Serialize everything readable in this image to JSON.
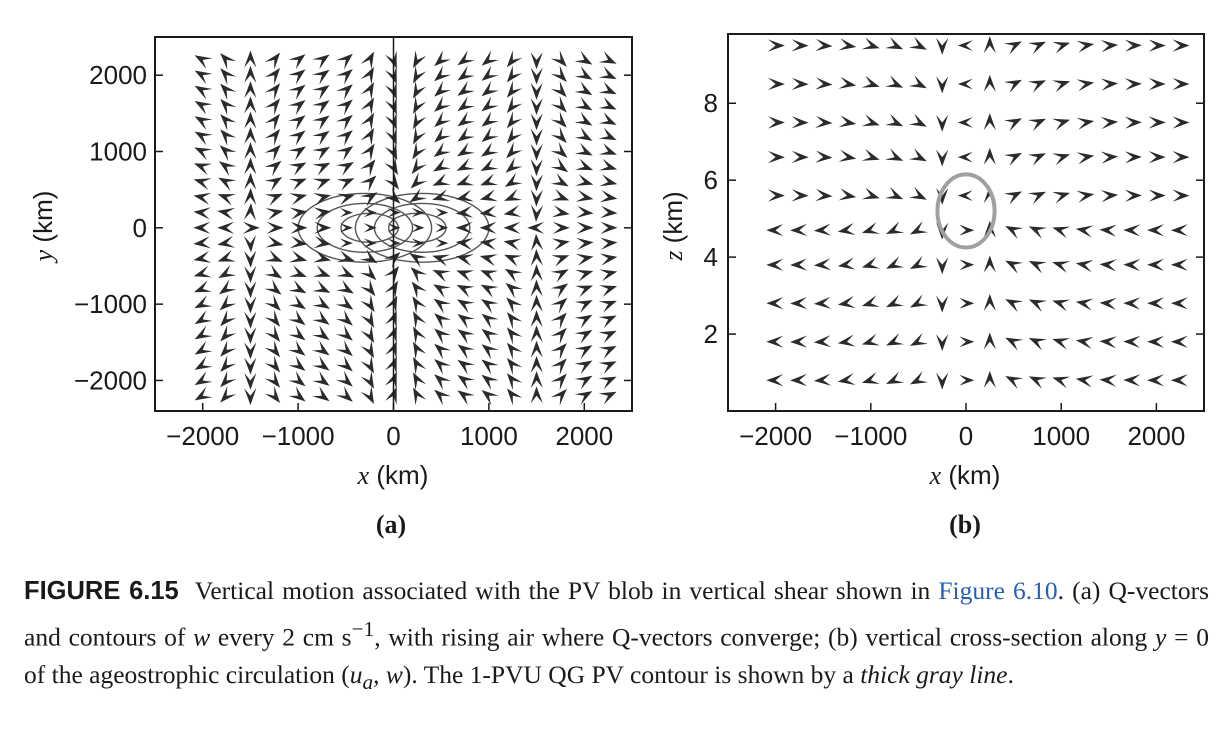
{
  "figure": {
    "label": "FIGURE 6.15",
    "caption_intro": "Vertical motion associated with the PV blob in vertical shear shown in",
    "caption_link": "Figure 6.10",
    "caption_p1": ". (a) Q-vectors and contours of",
    "caption_w": "w",
    "caption_p2": "every 2 cm s",
    "caption_sup": "−1",
    "caption_p3": ", with rising air where Q-vectors converge; (b) vertical cross-section along",
    "caption_y": "y",
    "caption_p4": " = 0 of the ageostrophic circulation (",
    "caption_ua": "u",
    "caption_ua_sub": "a",
    "caption_p5": ",",
    "caption_w2": "w",
    "caption_p6": "). The 1-PVU QG PV contour is shown by a",
    "caption_thick": "thick gray line",
    "caption_end": "."
  },
  "chart_data": [
    {
      "panel": "(a)",
      "type": "quiver",
      "xlabel_var": "x",
      "xlabel_unit": "(km)",
      "ylabel_var": "y",
      "ylabel_unit": "(km)",
      "xlim": [
        -2500,
        2500
      ],
      "ylim": [
        -2400,
        2500
      ],
      "xticks": [
        -2000,
        -1000,
        0,
        1000,
        2000
      ],
      "xtick_labels": [
        "−2000",
        "−1000",
        "0",
        "1000",
        "2000"
      ],
      "yticks": [
        2000,
        1000,
        0,
        -1000,
        -2000
      ],
      "ytick_labels": [
        "2000",
        "1000",
        "0",
        "−1000",
        "−2000"
      ],
      "grid_x": [
        -2000,
        -1750,
        -1500,
        -1250,
        -1000,
        -750,
        -500,
        -250,
        0,
        250,
        500,
        750,
        1000,
        1250,
        1500,
        1750,
        2000,
        2250
      ],
      "grid_y": [
        2200,
        2000,
        1800,
        1600,
        1400,
        1200,
        1000,
        800,
        600,
        400,
        200,
        0,
        -200,
        -400,
        -600,
        -800,
        -1000,
        -1200,
        -1400,
        -1600,
        -1800,
        -2000,
        -2200
      ],
      "w_contours": [
        {
          "cx": -300,
          "cy": 0,
          "rx": 700,
          "ry": 450
        },
        {
          "cx": -300,
          "cy": 0,
          "rx": 500,
          "ry": 320
        },
        {
          "cx": -250,
          "cy": 0,
          "rx": 300,
          "ry": 190
        },
        {
          "cx": 300,
          "cy": 0,
          "rx": 700,
          "ry": 450
        },
        {
          "cx": 300,
          "cy": 0,
          "rx": 500,
          "ry": 320
        },
        {
          "cx": 250,
          "cy": 0,
          "rx": 300,
          "ry": 190
        }
      ],
      "contour_color": "#555555"
    },
    {
      "panel": "(b)",
      "type": "quiver",
      "xlabel_var": "x",
      "xlabel_unit": "(km)",
      "ylabel_var": "z",
      "ylabel_unit": "(km)",
      "xlim": [
        -2500,
        2500
      ],
      "ylim": [
        0,
        9.8
      ],
      "xticks": [
        -2000,
        -1000,
        0,
        1000,
        2000
      ],
      "xtick_labels": [
        "−2000",
        "−1000",
        "0",
        "1000",
        "2000"
      ],
      "yticks": [
        8,
        6,
        4,
        2
      ],
      "ytick_labels": [
        "8",
        "6",
        "4",
        "2"
      ],
      "grid_x": [
        -2000,
        -1750,
        -1500,
        -1250,
        -1000,
        -750,
        -500,
        -250,
        0,
        250,
        500,
        750,
        1000,
        1250,
        1500,
        1750,
        2000,
        2250
      ],
      "grid_z": [
        9.5,
        8.5,
        7.5,
        6.6,
        5.6,
        4.7,
        3.8,
        2.8,
        1.8,
        0.8
      ],
      "pv_contour": {
        "cx": 0,
        "cz": 5.2,
        "rx": 300,
        "rz": 0.95
      },
      "pv_color": "#a0a0a0"
    }
  ],
  "colors": {
    "arrow": "#2b2b2b",
    "axis": "#1a1a1a",
    "link": "#2a5fb0"
  }
}
